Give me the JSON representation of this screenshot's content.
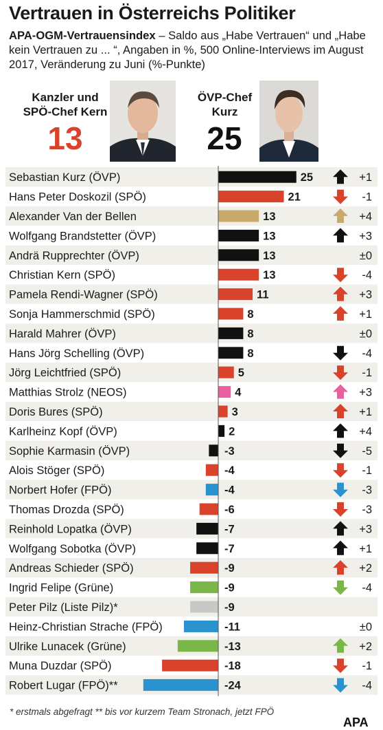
{
  "header": {
    "title": "Vertrauen in Österreichs Politiker",
    "subtitle_bold": "APA-OGM-Vertrauensindex",
    "subtitle_rest": " – Saldo aus „Habe Vertrauen“ und „Habe kein Vertrauen zu ... “, Angaben in %, 500 Online-Interviews im August 2017, Veränderung zu Juni (%-Punkte)"
  },
  "portraits": {
    "left": {
      "label_line1": "Kanzler und",
      "label_line2": "SPÖ-Chef Kern",
      "value": "13",
      "color": "#d9432b"
    },
    "right": {
      "label_line1": "ÖVP-Chef",
      "label_line2": "Kurz",
      "value": "25",
      "color": "#111111"
    }
  },
  "colors": {
    "OVP": "#111111",
    "SPO": "#d9432b",
    "FPO": "#2a93cf",
    "NEOS": "#e8609e",
    "Grune": "#7ab648",
    "VdB": "#c9aa6b",
    "Pilz": "#c8c8c8",
    "row_odd": "#f1efea",
    "row_even": "#ffffff"
  },
  "chart_data": {
    "type": "bar",
    "orientation": "horizontal",
    "xlim": [
      -25,
      25
    ],
    "categories": [
      "Sebastian Kurz (ÖVP)",
      "Hans Peter Doskozil (SPÖ)",
      "Alexander Van der Bellen",
      "Wolfgang Brandstetter (ÖVP)",
      "Andrä Rupprechter (ÖVP)",
      "Christian Kern (SPÖ)",
      "Pamela Rendi-Wagner (SPÖ)",
      "Sonja Hammerschmid (SPÖ)",
      "Harald Mahrer (ÖVP)",
      "Hans Jörg Schelling (ÖVP)",
      "Jörg Leichtfried (SPÖ)",
      "Matthias Strolz (NEOS)",
      "Doris Bures (SPÖ)",
      "Karlheinz Kopf (ÖVP)",
      "Sophie Karmasin (ÖVP)",
      "Alois Stöger (SPÖ)",
      "Norbert Hofer (FPÖ)",
      "Thomas Drozda (SPÖ)",
      "Reinhold Lopatka (ÖVP)",
      "Wolfgang Sobotka (ÖVP)",
      "Andreas Schieder (SPÖ)",
      "Ingrid Felipe (Grüne)",
      "Peter Pilz (Liste Pilz)*",
      "Heinz-Christian Strache (FPÖ)",
      "Ulrike Lunacek (Grüne)",
      "Muna Duzdar (SPÖ)",
      "Robert Lugar (FPÖ)**"
    ],
    "values": [
      25,
      21,
      13,
      13,
      13,
      13,
      11,
      8,
      8,
      8,
      5,
      4,
      3,
      2,
      -3,
      -4,
      -4,
      -6,
      -7,
      -7,
      -9,
      -9,
      -9,
      -11,
      -13,
      -18,
      -24
    ],
    "value_labels": [
      "25",
      "21",
      "13",
      "13",
      "13",
      "13",
      "11",
      "8",
      "8",
      "8",
      "5",
      "4",
      "3",
      "2",
      "-3",
      "-4",
      "-4",
      "-6",
      "-7",
      "-7",
      "-9",
      "-9",
      "-9",
      "-11",
      "-13",
      "-18",
      "-24"
    ],
    "parties": [
      "OVP",
      "SPO",
      "VdB",
      "OVP",
      "OVP",
      "SPO",
      "SPO",
      "SPO",
      "OVP",
      "OVP",
      "SPO",
      "NEOS",
      "SPO",
      "OVP",
      "OVP",
      "SPO",
      "FPO",
      "SPO",
      "OVP",
      "OVP",
      "SPO",
      "Grune",
      "Pilz",
      "FPO",
      "Grune",
      "SPO",
      "FPO"
    ],
    "change_labels": [
      "+1",
      "-1",
      "+4",
      "+3",
      "±0",
      "-4",
      "+3",
      "+1",
      "±0",
      "-4",
      "-1",
      "+3",
      "+1",
      "+4",
      "-5",
      "-1",
      "-3",
      "-3",
      "+3",
      "+1",
      "+2",
      "-4",
      "",
      "±0",
      "+2",
      "-1",
      "-4"
    ],
    "change_direction": [
      "up",
      "down",
      "up",
      "up",
      "none",
      "down",
      "up",
      "up",
      "none",
      "down",
      "down",
      "up",
      "up",
      "up",
      "down",
      "down",
      "down",
      "down",
      "up",
      "up",
      "up",
      "down",
      "none",
      "none",
      "up",
      "down",
      "down"
    ]
  },
  "footnote": "* erstmals abgefragt  ** bis vor kurzem Team Stronach, jetzt FPÖ",
  "brand": "APA"
}
